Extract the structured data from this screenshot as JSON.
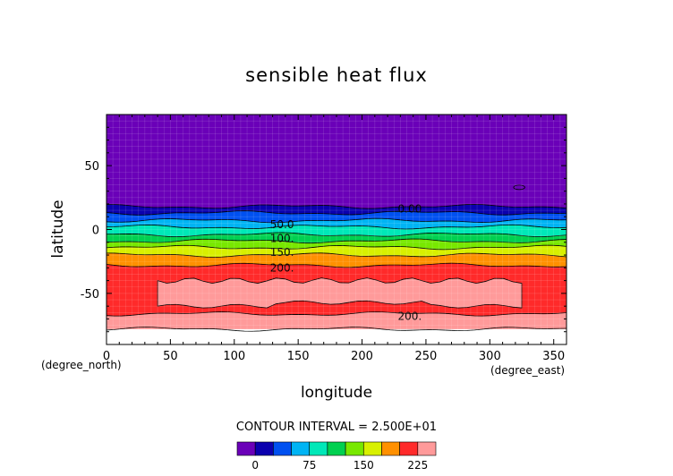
{
  "chart_data": {
    "type": "heatmap",
    "title": "sensible heat flux",
    "xlabel": "longitude",
    "ylabel": "latitude",
    "x_unit": "(degree_east)",
    "y_unit": "(degree_north)",
    "xlim": [
      0,
      360
    ],
    "ylim": [
      -90,
      90
    ],
    "x_ticks": [
      0,
      50,
      100,
      150,
      200,
      250,
      300,
      350
    ],
    "y_ticks": [
      -50,
      0,
      50
    ],
    "contour_interval_text": "CONTOUR INTERVAL = 2.500E+01",
    "levels": [
      -25,
      0,
      25,
      50,
      75,
      100,
      125,
      150,
      175,
      200,
      225,
      250
    ],
    "colorbar_ticks": [
      0,
      75,
      150,
      225
    ],
    "colors": [
      "#6a00b8",
      "#0b00ae",
      "#0050f0",
      "#00b4f4",
      "#00e8b8",
      "#00d050",
      "#78e800",
      "#d8f000",
      "#ff9000",
      "#ff2a2a",
      "#ff9a9a"
    ],
    "band_edges_lat": [
      18,
      13,
      7,
      2,
      -4,
      -9,
      -14,
      -20,
      -28,
      -66,
      -78
    ],
    "patches": [
      {
        "lon": [
          320,
          326
        ],
        "lat": [
          33,
          33
        ],
        "value": -12
      },
      {
        "lon": [
          40,
          325
        ],
        "lat": [
          -40,
          -60
        ],
        "value": 237
      }
    ],
    "contour_labels": [
      {
        "text": "0.00",
        "lon": 228,
        "lat": 16
      },
      {
        "text": "50.0",
        "lon": 128,
        "lat": 4
      },
      {
        "text": "100.",
        "lon": 128,
        "lat": -7
      },
      {
        "text": "150.",
        "lon": 128,
        "lat": -18
      },
      {
        "text": "200.",
        "lon": 128,
        "lat": -30
      },
      {
        "text": "200.",
        "lon": 228,
        "lat": -68
      }
    ]
  }
}
